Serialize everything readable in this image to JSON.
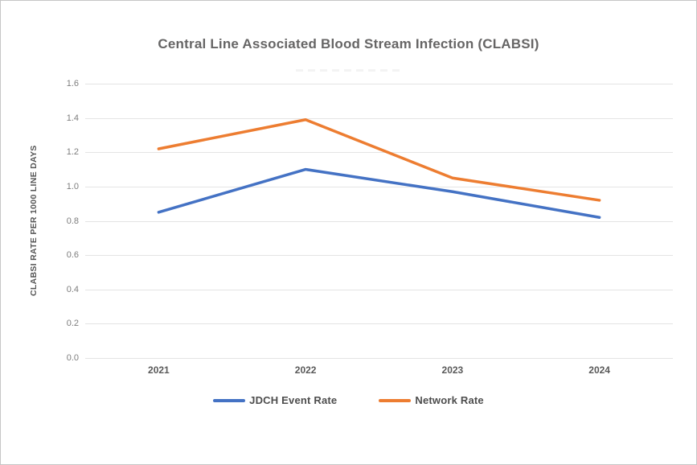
{
  "window": {
    "background": "#ffffff",
    "border_color": "#c6c6c6"
  },
  "chart_data": {
    "type": "line",
    "title": "Central Line Associated Blood Stream Infection (CLABSI)",
    "xlabel": "",
    "ylabel": "CLABSI RATE PER 1000 LINE DAYS",
    "categories": [
      "2021",
      "2022",
      "2023",
      "2024"
    ],
    "series": [
      {
        "name": "JDCH Event Rate",
        "color": "#4472C4",
        "values": [
          0.85,
          1.1,
          0.97,
          0.82
        ]
      },
      {
        "name": "Network Rate",
        "color": "#ED7D31",
        "values": [
          1.22,
          1.39,
          1.05,
          0.92
        ]
      }
    ],
    "ylim": [
      0,
      1.6
    ],
    "yticks": [
      "0.0",
      "0.2",
      "0.4",
      "0.6",
      "0.8",
      "1.0",
      "1.2",
      "1.4",
      "1.6"
    ],
    "grid": "horizontal",
    "gridline_color": "#e4e4e4",
    "legend_position": "bottom"
  }
}
